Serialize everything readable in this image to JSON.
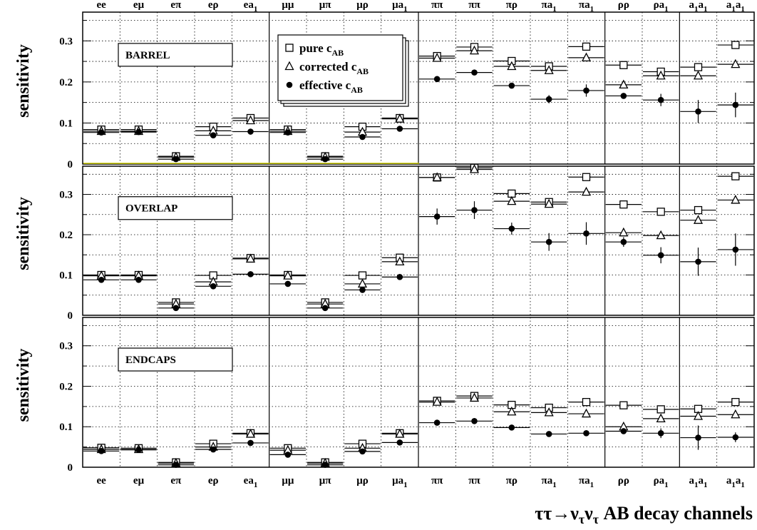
{
  "chart_data": {
    "type": "scatter",
    "title": "",
    "ylabel": "sensitivity",
    "xlabel": "ττ→ν_τν_τ AB  decay channels",
    "ylim": [
      0,
      0.37
    ],
    "yticks": [
      "0",
      "0.1",
      "0.2",
      "0.3"
    ],
    "grid": true,
    "legend_position": "top-center (first panel)",
    "categories": [
      {
        "base": "ee",
        "sub": ""
      },
      {
        "base": "eμ",
        "sub": ""
      },
      {
        "base": "eπ",
        "sub": ""
      },
      {
        "base": "eρ",
        "sub": ""
      },
      {
        "base": "ea",
        "sub": "1"
      },
      {
        "base": "μμ",
        "sub": ""
      },
      {
        "base": "μπ",
        "sub": ""
      },
      {
        "base": "μρ",
        "sub": ""
      },
      {
        "base": "μa",
        "sub": "1"
      },
      {
        "base": "ππ",
        "sub": ""
      },
      {
        "base": "ππ",
        "sub": ""
      },
      {
        "base": "πρ",
        "sub": ""
      },
      {
        "base": "πa",
        "sub": "1"
      },
      {
        "base": "πa",
        "sub": "1"
      },
      {
        "base": "ρρ",
        "sub": ""
      },
      {
        "base": "ρa",
        "sub": "1"
      },
      {
        "base": "a",
        "sub": "1",
        "base2": "a",
        "sub2": "1"
      },
      {
        "base": "a",
        "sub": "1",
        "base2": "a",
        "sub2": "1"
      }
    ],
    "legend": [
      {
        "marker": "square-open",
        "text": "pure c",
        "sub": "AB"
      },
      {
        "marker": "triangle-open",
        "text": "corrected c",
        "sub": "AB"
      },
      {
        "marker": "circle-filled",
        "text": "effective c",
        "sub": "AB"
      }
    ],
    "panels": [
      {
        "label": "BARREL",
        "series": [
          {
            "marker": "square-open",
            "values": [
              0.084,
              0.084,
              0.019,
              0.091,
              0.112,
              0.084,
              0.019,
              0.091,
              0.112,
              0.263,
              0.285,
              0.251,
              0.238,
              0.286,
              0.241,
              0.225,
              0.236,
              0.29
            ]
          },
          {
            "marker": "triangle-open",
            "values": [
              0.08,
              0.08,
              0.017,
              0.081,
              0.106,
              0.08,
              0.017,
              0.078,
              0.11,
              0.258,
              0.276,
              0.238,
              0.228,
              0.259,
              0.193,
              0.215,
              0.215,
              0.243
            ]
          },
          {
            "marker": "circle-filled",
            "values": [
              0.077,
              0.078,
              0.012,
              0.07,
              0.079,
              0.077,
              0.012,
              0.066,
              0.086,
              0.207,
              0.223,
              0.191,
              0.158,
              0.179,
              0.166,
              0.156,
              0.128,
              0.144
            ],
            "errors": [
              0,
              0,
              0,
              0,
              0,
              0,
              0,
              0,
              0,
              0,
              0,
              0,
              0.01,
              0.015,
              0,
              0.015,
              0.028,
              0.03
            ]
          }
        ]
      },
      {
        "label": "OVERLAP",
        "series": [
          {
            "marker": "square-open",
            "values": [
              0.1,
              0.1,
              0.032,
              0.099,
              0.142,
              0.1,
              0.032,
              0.099,
              0.143,
              0.342,
              0.366,
              0.302,
              0.281,
              0.343,
              0.275,
              0.257,
              0.261,
              0.345
            ]
          },
          {
            "marker": "triangle-open",
            "values": [
              0.098,
              0.098,
              0.028,
              0.083,
              0.14,
              0.098,
              0.028,
              0.078,
              0.133,
              0.342,
              0.362,
              0.283,
              0.276,
              0.306,
              0.205,
              0.198,
              0.236,
              0.286
            ]
          },
          {
            "marker": "circle-filled",
            "values": [
              0.088,
              0.088,
              0.018,
              0.072,
              0.102,
              0.078,
              0.018,
              0.063,
              0.095,
              0.245,
              0.261,
              0.215,
              0.182,
              0.203,
              0.182,
              0.149,
              0.133,
              0.163
            ],
            "errors": [
              0,
              0,
              0,
              0,
              0,
              0,
              0,
              0,
              0,
              0.02,
              0.022,
              0.015,
              0.022,
              0.028,
              0.012,
              0.02,
              0.035,
              0.04
            ]
          }
        ]
      },
      {
        "label": "ENDCAPS",
        "series": [
          {
            "marker": "square-open",
            "values": [
              0.048,
              0.047,
              0.012,
              0.058,
              0.084,
              0.047,
              0.012,
              0.058,
              0.084,
              0.164,
              0.176,
              0.154,
              0.147,
              0.161,
              0.153,
              0.143,
              0.144,
              0.161
            ]
          },
          {
            "marker": "triangle-open",
            "values": [
              0.044,
              0.044,
              0.01,
              0.05,
              0.082,
              0.042,
              0.01,
              0.047,
              0.082,
              0.161,
              0.171,
              0.137,
              0.135,
              0.132,
              0.1,
              0.12,
              0.126,
              0.13
            ]
          },
          {
            "marker": "circle-filled",
            "values": [
              0.04,
              0.043,
              0.006,
              0.044,
              0.06,
              0.031,
              0.006,
              0.039,
              0.061,
              0.11,
              0.114,
              0.098,
              0.082,
              0.084,
              0.089,
              0.084,
              0.073,
              0.074
            ],
            "errors": [
              0,
              0,
              0,
              0,
              0,
              0,
              0,
              0,
              0,
              0,
              0,
              0,
              0,
              0,
              0,
              0.012,
              0.03,
              0.012
            ]
          }
        ]
      }
    ]
  }
}
